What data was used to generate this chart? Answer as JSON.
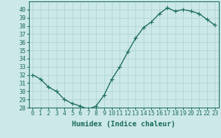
{
  "x": [
    0,
    1,
    2,
    3,
    4,
    5,
    6,
    7,
    8,
    9,
    10,
    11,
    12,
    13,
    14,
    15,
    16,
    17,
    18,
    19,
    20,
    21,
    22,
    23
  ],
  "y": [
    32,
    31.5,
    30.5,
    30,
    29,
    28.5,
    28.2,
    27.8,
    28.2,
    29.5,
    31.5,
    33,
    34.8,
    36.5,
    37.8,
    38.5,
    39.5,
    40.2,
    39.8,
    40,
    39.8,
    39.5,
    38.8,
    38.1
  ],
  "xlabel": "Humidex (Indice chaleur)",
  "ylim": [
    28,
    41
  ],
  "xlim": [
    -0.5,
    23.5
  ],
  "yticks": [
    28,
    29,
    30,
    31,
    32,
    33,
    34,
    35,
    36,
    37,
    38,
    39,
    40
  ],
  "xticks": [
    0,
    1,
    2,
    3,
    4,
    5,
    6,
    7,
    8,
    9,
    10,
    11,
    12,
    13,
    14,
    15,
    16,
    17,
    18,
    19,
    20,
    21,
    22,
    23
  ],
  "line_color": "#1a6b5a",
  "bg_color": "#cce8e8",
  "grid_color": "#b0d4d4",
  "tick_fontsize": 6.0,
  "xlabel_fontsize": 7.5,
  "line_width": 1.0,
  "marker_size": 2.2
}
